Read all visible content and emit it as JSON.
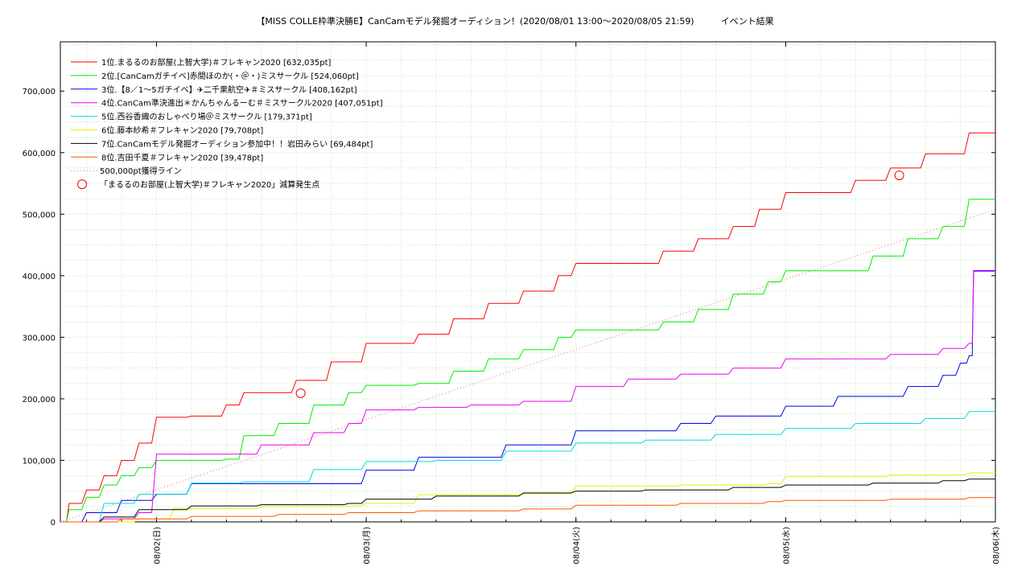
{
  "chart_data": {
    "type": "line",
    "title": "【MISS COLLE枠準決勝E】CanCamモデル発掘オーディション！(2020/08/01 13:00〜2020/08/05 21:59)　　　イベント結果",
    "xlabel": "",
    "ylabel": "",
    "xlim": [
      "2020/08/01 13:00",
      "2020/08/06 00:00"
    ],
    "ylim": [
      0,
      780000
    ],
    "x_ticks": [
      "08/02(日)",
      "08/03(月)",
      "08/04(火)",
      "08/05(水)",
      "08/06(木)"
    ],
    "y_ticks": [
      "0",
      "100,000",
      "200,000",
      "300,000",
      "400,000",
      "500,000",
      "600,000",
      "700,000"
    ],
    "grid": true,
    "legend_position": "top-left",
    "series": [
      {
        "name": "1位.まるるのお部屋(上智大学)＃フレキャン2020 [632,035pt]",
        "color": "#ff0000",
        "x": [
          "2020/08/01 13:00",
          "2020/08/01 14:00",
          "2020/08/01 16:00",
          "2020/08/01 18:00",
          "2020/08/01 20:00",
          "2020/08/01 22:00",
          "2020/08/02 00:00",
          "2020/08/02 04:00",
          "2020/08/02 08:00",
          "2020/08/02 10:00",
          "2020/08/02 16:00",
          "2020/08/02 20:00",
          "2020/08/03 00:00",
          "2020/08/03 06:00",
          "2020/08/03 10:00",
          "2020/08/03 14:00",
          "2020/08/03 18:00",
          "2020/08/03 22:00",
          "2020/08/04 00:00",
          "2020/08/04 06:00",
          "2020/08/04 10:00",
          "2020/08/04 14:00",
          "2020/08/04 18:00",
          "2020/08/04 21:00",
          "2020/08/05 00:00",
          "2020/08/05 04:00",
          "2020/08/05 08:00",
          "2020/08/05 12:00",
          "2020/08/05 16:00",
          "2020/08/05 21:00",
          "2020/08/05 22:00",
          "2020/08/06 00:00"
        ],
        "values": [
          0,
          30000,
          52000,
          75000,
          100000,
          128000,
          170000,
          172000,
          190000,
          210000,
          230000,
          260000,
          290000,
          305000,
          330000,
          355000,
          375000,
          400000,
          420000,
          420000,
          440000,
          460000,
          480000,
          508000,
          535000,
          535000,
          555000,
          575000,
          598000,
          632035,
          632035,
          632035
        ]
      },
      {
        "name": "2位.[CanCamガチイベ]赤間ほのか(・＠・)ミスサークル [524,060pt]",
        "color": "#00ee00",
        "x": [
          "2020/08/01 13:00",
          "2020/08/01 14:00",
          "2020/08/01 16:00",
          "2020/08/01 18:00",
          "2020/08/01 20:00",
          "2020/08/01 22:00",
          "2020/08/02 00:00",
          "2020/08/02 08:00",
          "2020/08/02 10:00",
          "2020/08/02 14:00",
          "2020/08/02 18:00",
          "2020/08/02 22:00",
          "2020/08/03 00:00",
          "2020/08/03 06:00",
          "2020/08/03 10:00",
          "2020/08/03 14:00",
          "2020/08/03 18:00",
          "2020/08/03 22:00",
          "2020/08/04 00:00",
          "2020/08/04 06:00",
          "2020/08/04 10:00",
          "2020/08/04 14:00",
          "2020/08/04 18:00",
          "2020/08/04 22:00",
          "2020/08/05 00:00",
          "2020/08/05 06:00",
          "2020/08/05 10:00",
          "2020/08/05 14:00",
          "2020/08/05 18:00",
          "2020/08/05 21:00",
          "2020/08/05 22:00",
          "2020/08/06 00:00"
        ],
        "values": [
          0,
          20000,
          40000,
          60000,
          75000,
          88000,
          100000,
          102000,
          140000,
          160000,
          190000,
          210000,
          222000,
          225000,
          245000,
          265000,
          280000,
          300000,
          312000,
          312000,
          325000,
          345000,
          370000,
          390000,
          408000,
          408000,
          432000,
          460000,
          480000,
          524060,
          524060,
          524060
        ]
      },
      {
        "name": "3位.【8／1〜5ガチイベ】✈二千果航空✈＃ミスサークル [408,162pt]",
        "color": "#0000ee",
        "x": [
          "2020/08/01 13:00",
          "2020/08/01 16:00",
          "2020/08/01 20:00",
          "2020/08/02 00:00",
          "2020/08/02 04:00",
          "2020/08/02 10:00",
          "2020/08/02 22:00",
          "2020/08/03 00:00",
          "2020/08/03 06:00",
          "2020/08/03 12:00",
          "2020/08/03 16:00",
          "2020/08/03 22:00",
          "2020/08/04 00:00",
          "2020/08/04 06:00",
          "2020/08/04 12:00",
          "2020/08/04 16:00",
          "2020/08/04 22:00",
          "2020/08/05 00:00",
          "2020/08/05 06:00",
          "2020/08/05 10:00",
          "2020/08/05 14:00",
          "2020/08/05 18:00",
          "2020/08/05 20:00",
          "2020/08/05 21:00",
          "2020/08/05 21:30",
          "2020/08/06 00:00"
        ],
        "values": [
          0,
          15000,
          35000,
          45000,
          62000,
          62000,
          62000,
          84000,
          105000,
          105000,
          125000,
          125000,
          148000,
          148000,
          160000,
          172000,
          172000,
          188000,
          204000,
          204000,
          220000,
          238000,
          258000,
          270000,
          408162,
          408162
        ]
      },
      {
        "name": "4位.CanCam準決進出＊かんちゃんるーむ＃ミスサークル2020 [407,051pt]",
        "color": "#ee00ee",
        "x": [
          "2020/08/01 13:00",
          "2020/08/01 18:00",
          "2020/08/01 22:00",
          "2020/08/02 00:00",
          "2020/08/02 08:00",
          "2020/08/02 12:00",
          "2020/08/02 18:00",
          "2020/08/02 22:00",
          "2020/08/03 00:00",
          "2020/08/03 06:00",
          "2020/08/03 12:00",
          "2020/08/03 18:00",
          "2020/08/04 00:00",
          "2020/08/04 06:00",
          "2020/08/04 12:00",
          "2020/08/04 18:00",
          "2020/08/05 00:00",
          "2020/08/05 06:00",
          "2020/08/05 12:00",
          "2020/08/05 18:00",
          "2020/08/05 21:00",
          "2020/08/05 21:30",
          "2020/08/06 00:00"
        ],
        "values": [
          0,
          5000,
          15000,
          110000,
          110000,
          125000,
          145000,
          160000,
          182000,
          186000,
          190000,
          196000,
          220000,
          232000,
          240000,
          250000,
          265000,
          265000,
          272000,
          282000,
          290000,
          407051,
          407051
        ]
      },
      {
        "name": "5位.西谷香織のおしゃべり場＠ミスサークル [179,371pt]",
        "color": "#00dddd",
        "x": [
          "2020/08/01 13:00",
          "2020/08/01 18:00",
          "2020/08/01 22:00",
          "2020/08/02 04:00",
          "2020/08/02 10:00",
          "2020/08/02 18:00",
          "2020/08/03 00:00",
          "2020/08/03 08:00",
          "2020/08/03 16:00",
          "2020/08/04 00:00",
          "2020/08/04 08:00",
          "2020/08/04 16:00",
          "2020/08/05 00:00",
          "2020/08/05 08:00",
          "2020/08/05 16:00",
          "2020/08/05 21:00",
          "2020/08/06 00:00"
        ],
        "values": [
          0,
          30000,
          45000,
          63000,
          65000,
          85000,
          98000,
          100000,
          115000,
          128000,
          133000,
          142000,
          152000,
          160000,
          168000,
          179371,
          179371
        ]
      },
      {
        "name": "6位.藤本紗希＃フレキャン2020 [79,708pt]",
        "color": "#eeee00",
        "x": [
          "2020/08/01 13:00",
          "2020/08/01 22:00",
          "2020/08/02 02:00",
          "2020/08/02 12:00",
          "2020/08/02 22:00",
          "2020/08/03 00:00",
          "2020/08/03 06:00",
          "2020/08/03 18:00",
          "2020/08/04 00:00",
          "2020/08/04 12:00",
          "2020/08/04 22:00",
          "2020/08/05 00:00",
          "2020/08/05 12:00",
          "2020/08/05 21:00",
          "2020/08/06 00:00"
        ],
        "values": [
          0,
          5000,
          22000,
          25000,
          26000,
          30000,
          44000,
          46000,
          58000,
          60000,
          62000,
          74000,
          76000,
          79708,
          79708
        ]
      },
      {
        "name": "7位.CanCamモデル発掘オーディション参加中！！岩田みらい [69,484pt]",
        "color": "#000000",
        "x": [
          "2020/08/01 13:00",
          "2020/08/01 18:00",
          "2020/08/01 22:00",
          "2020/08/02 04:00",
          "2020/08/02 12:00",
          "2020/08/02 22:00",
          "2020/08/03 00:00",
          "2020/08/03 08:00",
          "2020/08/03 18:00",
          "2020/08/04 00:00",
          "2020/08/04 08:00",
          "2020/08/04 18:00",
          "2020/08/05 00:00",
          "2020/08/05 10:00",
          "2020/08/05 18:00",
          "2020/08/05 21:00",
          "2020/08/06 00:00"
        ],
        "values": [
          0,
          8000,
          20000,
          26000,
          28000,
          30000,
          37000,
          42000,
          47000,
          50000,
          52000,
          56000,
          60000,
          63000,
          67000,
          69484,
          69484
        ]
      },
      {
        "name": "8位.吉田千夏＃フレキャン2020 [39,478pt]",
        "color": "#ff5500",
        "x": [
          "2020/08/01 13:00",
          "2020/08/01 20:00",
          "2020/08/02 04:00",
          "2020/08/02 14:00",
          "2020/08/02 22:00",
          "2020/08/03 06:00",
          "2020/08/03 18:00",
          "2020/08/04 00:00",
          "2020/08/04 12:00",
          "2020/08/04 22:00",
          "2020/08/05 00:00",
          "2020/08/05 12:00",
          "2020/08/05 21:00",
          "2020/08/06 00:00"
        ],
        "values": [
          0,
          5000,
          9000,
          12000,
          15000,
          18000,
          21000,
          27000,
          30000,
          33000,
          35000,
          37000,
          39478,
          39478
        ]
      }
    ],
    "reference_line": {
      "name": "500,000pt獲得ライン",
      "color": "#ee6688",
      "x": [
        "2020/08/01 13:00",
        "2020/08/06 00:00"
      ],
      "values": [
        0,
        508000
      ]
    },
    "markers": {
      "name": "「まるるのお部屋(上智大学)＃フレキャン2020」減算発生点",
      "color": "#ff0000",
      "points": [
        {
          "x": "2020/08/02 16:30",
          "y": 209000
        },
        {
          "x": "2020/08/05 13:00",
          "y": 563000
        }
      ]
    }
  }
}
